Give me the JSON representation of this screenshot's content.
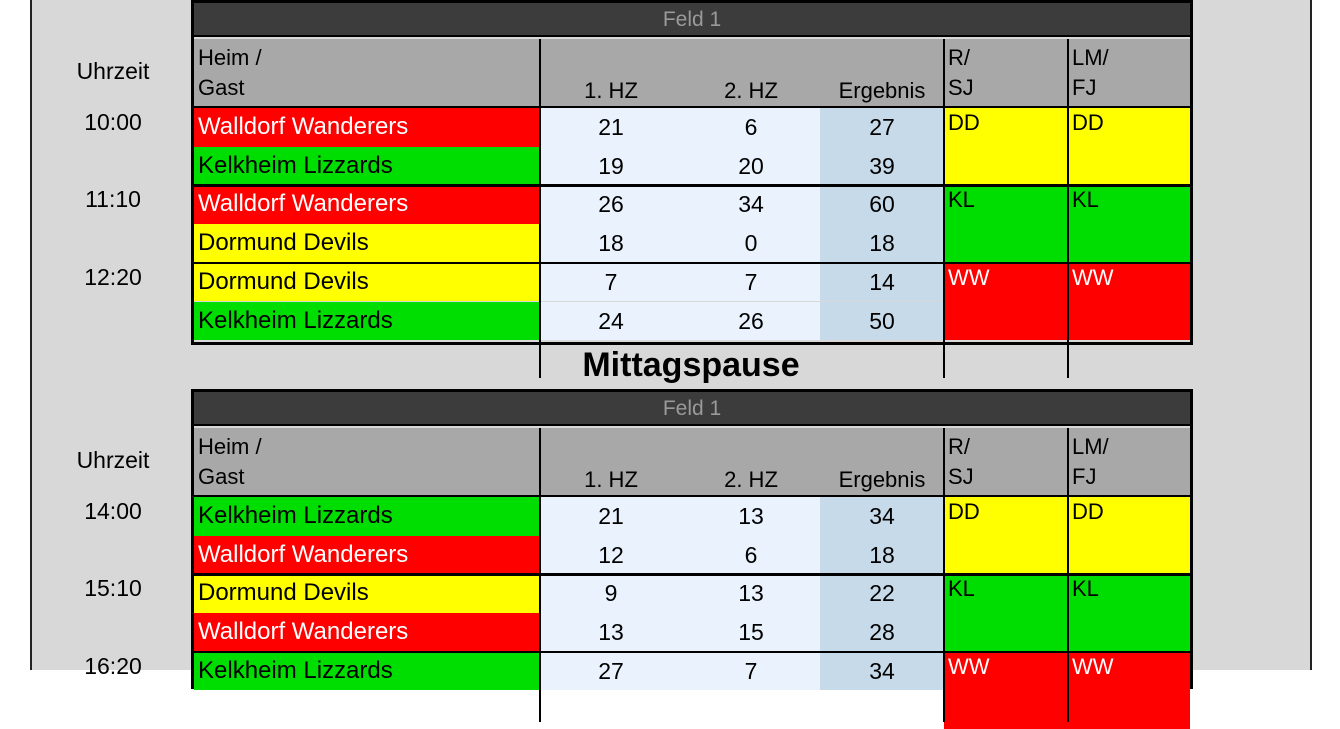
{
  "colors": {
    "red": "#ff0000",
    "green": "#00dd00",
    "yellow": "#ffff00",
    "score_bg": "#eaf3fd",
    "result_bg": "#c7daea",
    "header_bg": "#a8a8a8",
    "field_bar": "#3c3c3c",
    "panel_bg": "#d8d8d8"
  },
  "headers": {
    "field": "Feld 1",
    "time": "Uhrzeit",
    "home_guest_1": "Heim /",
    "home_guest_2": "Gast",
    "hz1": "1. HZ",
    "hz2": "2. HZ",
    "result": "Ergebnis",
    "col_rs_1": "R/",
    "col_rs_2": "SJ",
    "col_lm_1": "LM/",
    "col_lm_2": "FJ"
  },
  "break_label": "Mittagspause",
  "blocks": [
    {
      "matches": [
        {
          "time": "10:00",
          "team1": {
            "name": "Walldorf Wanderers",
            "color": "red",
            "hz1": "21",
            "hz2": "6",
            "result": "27"
          },
          "team2": {
            "name": "Kelkheim Lizzards",
            "color": "green",
            "hz1": "19",
            "hz2": "20",
            "result": "39"
          },
          "rs": "DD",
          "lm": "DD",
          "official_color": "yellow"
        },
        {
          "time": "11:10",
          "team1": {
            "name": "Walldorf Wanderers",
            "color": "red",
            "hz1": "26",
            "hz2": "34",
            "result": "60"
          },
          "team2": {
            "name": "Dormund Devils",
            "color": "yellow",
            "hz1": "18",
            "hz2": "0",
            "result": "18"
          },
          "rs": "KL",
          "lm": "KL",
          "official_color": "green"
        },
        {
          "time": "12:20",
          "team1": {
            "name": "Dormund Devils",
            "color": "yellow",
            "hz1": "7",
            "hz2": "7",
            "result": "14"
          },
          "team2": {
            "name": "Kelkheim Lizzards",
            "color": "green",
            "hz1": "24",
            "hz2": "26",
            "result": "50"
          },
          "rs": "WW",
          "lm": "WW",
          "official_color": "red"
        }
      ]
    },
    {
      "matches": [
        {
          "time": "14:00",
          "team1": {
            "name": "Kelkheim Lizzards",
            "color": "green",
            "hz1": "21",
            "hz2": "13",
            "result": "34"
          },
          "team2": {
            "name": "Walldorf Wanderers",
            "color": "red",
            "hz1": "12",
            "hz2": "6",
            "result": "18"
          },
          "rs": "DD",
          "lm": "DD",
          "official_color": "yellow"
        },
        {
          "time": "15:10",
          "team1": {
            "name": "Dormund Devils",
            "color": "yellow",
            "hz1": "9",
            "hz2": "13",
            "result": "22"
          },
          "team2": {
            "name": "Walldorf Wanderers",
            "color": "red",
            "hz1": "13",
            "hz2": "15",
            "result": "28"
          },
          "rs": "KL",
          "lm": "KL",
          "official_color": "green"
        },
        {
          "time": "16:20",
          "team1": {
            "name": "Kelkheim Lizzards",
            "color": "green",
            "hz1": "27",
            "hz2": "7",
            "result": "34"
          },
          "team2": {
            "name": "",
            "color": "",
            "hz1": "",
            "hz2": "",
            "result": ""
          },
          "rs": "WW",
          "lm": "WW",
          "official_color": "red"
        }
      ]
    }
  ]
}
